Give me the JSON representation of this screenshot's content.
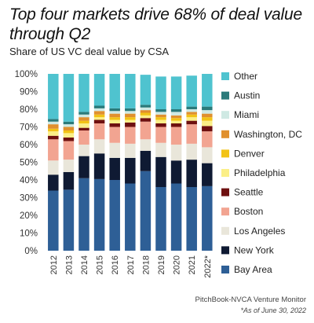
{
  "title": "Top four markets drive 68% of deal value through Q2",
  "subtitle": "Share of US VC deal value by CSA",
  "source": "PitchBook-NVCA Venture Monitor",
  "note": "*As of June 30, 2022",
  "chart_data": {
    "type": "bar",
    "stacked": true,
    "categories": [
      "2012",
      "2013",
      "2014",
      "2015",
      "2016",
      "2017",
      "2018",
      "2019",
      "2020",
      "2021",
      "2022*"
    ],
    "ylim": [
      0,
      100
    ],
    "yticks": [
      "0%",
      "10%",
      "20%",
      "30%",
      "40%",
      "50%",
      "60%",
      "70%",
      "80%",
      "90%",
      "100%"
    ],
    "legend_position": "right",
    "series": [
      {
        "name": "Bay Area",
        "color": "#2e5f96",
        "values": [
          34,
          34.5,
          41,
          40.5,
          40,
          38,
          45,
          36,
          38,
          36,
          36.5
        ]
      },
      {
        "name": "New York",
        "color": "#0f1a33",
        "values": [
          9,
          10,
          12.5,
          14.5,
          12.5,
          14.5,
          11.5,
          17,
          13,
          15.5,
          13
        ]
      },
      {
        "name": "Los Angeles",
        "color": "#e9e6da",
        "values": [
          8,
          7,
          6.5,
          8,
          8.5,
          8,
          6.5,
          8,
          9,
          9,
          9
        ]
      },
      {
        "name": "Boston",
        "color": "#f2a491",
        "values": [
          12,
          10.5,
          8,
          9,
          9,
          9.5,
          10,
          9,
          10,
          11,
          9
        ]
      },
      {
        "name": "Seattle",
        "color": "#6e1010",
        "values": [
          2,
          2,
          1.5,
          2,
          2,
          2.5,
          2,
          2,
          2,
          2,
          3
        ]
      },
      {
        "name": "Philadelphia",
        "color": "#fbef88",
        "values": [
          2.5,
          2.5,
          2.5,
          1.5,
          2,
          1.5,
          1.5,
          2,
          1.5,
          2,
          3
        ]
      },
      {
        "name": "Denver",
        "color": "#f2c316",
        "values": [
          1.5,
          1.5,
          1.5,
          1.5,
          1.5,
          1.5,
          1.5,
          1.5,
          1.5,
          1.5,
          2
        ]
      },
      {
        "name": "Washington, DC",
        "color": "#e0902e",
        "values": [
          2.5,
          2,
          2,
          2,
          2,
          2,
          1.5,
          1.5,
          1.5,
          1.5,
          2
        ]
      },
      {
        "name": "Miami",
        "color": "#cfe9e3",
        "values": [
          1.5,
          1.5,
          1.5,
          1.5,
          1.5,
          1.5,
          1.5,
          1.5,
          2,
          1.5,
          2
        ]
      },
      {
        "name": "Austin",
        "color": "#2a7a7a",
        "values": [
          1.5,
          1.5,
          1.5,
          1.5,
          1.5,
          1.5,
          1.5,
          1.5,
          1.5,
          1.5,
          2
        ]
      },
      {
        "name": "Other",
        "color": "#4fc3cf",
        "values": [
          25.5,
          27,
          21.5,
          18,
          19.5,
          19.5,
          17,
          18.5,
          18.5,
          17.5,
          18.5
        ]
      }
    ]
  }
}
